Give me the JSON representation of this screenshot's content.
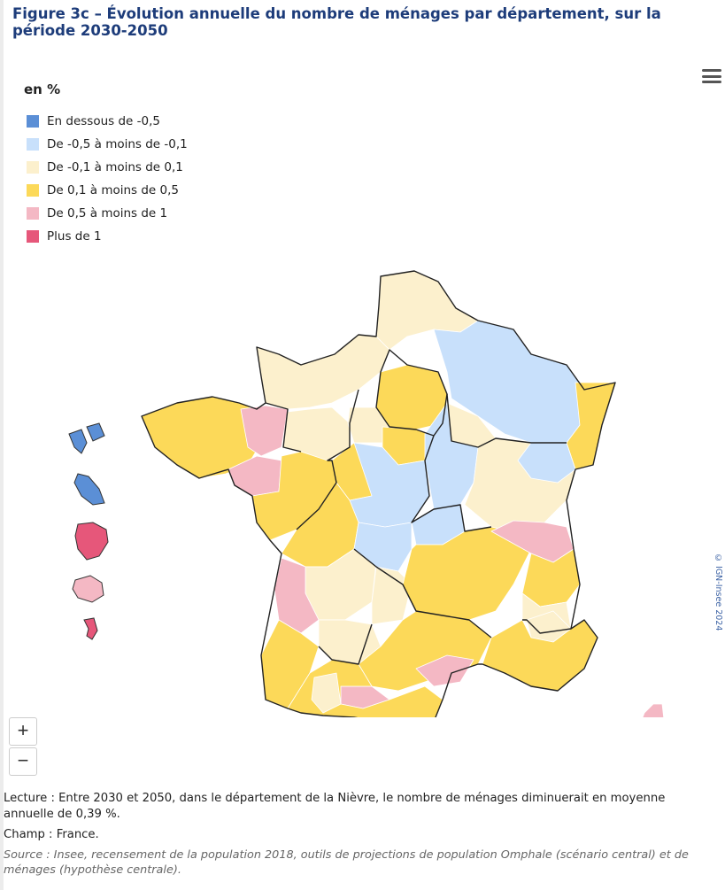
{
  "title": "Figure 3c – Évolution annuelle du nombre de ménages par département, sur la période 2030-2050",
  "legend": {
    "title": "en %",
    "items": [
      {
        "label": "En dessous de -0,5",
        "color": "#5b8fd6"
      },
      {
        "label": "De -0,5 à moins de -0,1",
        "color": "#c8e0fb"
      },
      {
        "label": "De -0,1 à moins de 0,1",
        "color": "#fcf0cd"
      },
      {
        "label": "De 0,1 à moins de 0,5",
        "color": "#fcd959"
      },
      {
        "label": "De 0,5 à moins de 1",
        "color": "#f4b8c4"
      },
      {
        "label": "Plus de 1",
        "color": "#e6577a"
      }
    ]
  },
  "map": {
    "credit": "© IGN-Insee 2024",
    "class_colors": [
      "#5b8fd6",
      "#c8e0fb",
      "#fcf0cd",
      "#fcd959",
      "#f4b8c4",
      "#e6577a"
    ],
    "overseas": [
      {
        "name": "Guadeloupe",
        "class": 0
      },
      {
        "name": "Martinique",
        "class": 0
      },
      {
        "name": "Guyane",
        "class": 5
      },
      {
        "name": "La Réunion",
        "class": 4
      },
      {
        "name": "Mayotte",
        "class": 5
      }
    ]
  },
  "zoom": {
    "in_label": "+",
    "out_label": "−"
  },
  "notes": {
    "lecture": "Lecture : Entre 2030 et 2050, dans le département de la Nièvre, le nombre de ménages diminuerait en moyenne annuelle de 0,39 %.",
    "champ": "Champ : France.",
    "source": "Source : Insee, recensement de la population 2018, outils de projections de population Omphale (scénario central) et de ménages (hypothèse centrale)."
  }
}
